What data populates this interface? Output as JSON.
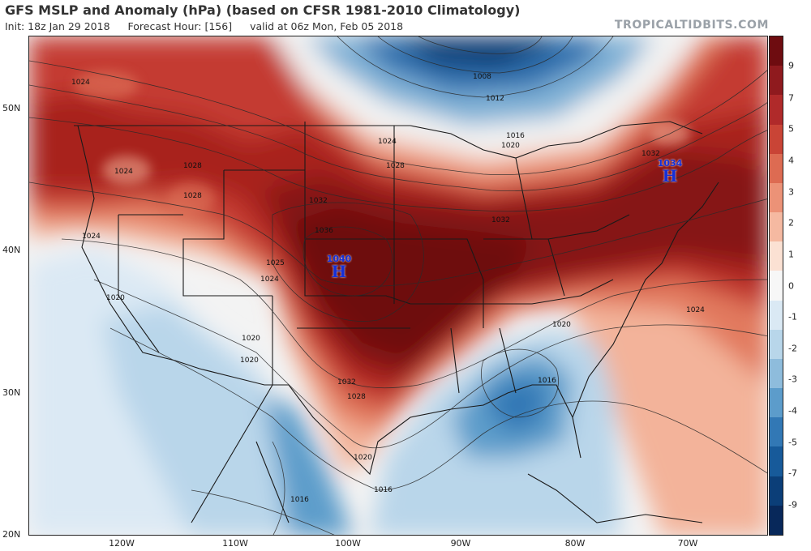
{
  "header": {
    "title": "GFS MSLP and Anomaly (hPa) (based on CFSR 1981-2010 Climatology)",
    "init": "Init: 18z Jan 29 2018",
    "forecast_hour": "Forecast Hour: [156]",
    "valid": "valid at 06z Mon, Feb 05 2018",
    "brand": "TROPICALTIDBITS.COM"
  },
  "axes": {
    "lat_labels": [
      "50N",
      "40N",
      "30N",
      "20N"
    ],
    "lon_labels": [
      "120W",
      "110W",
      "100W",
      "90W",
      "80W",
      "70W"
    ]
  },
  "colorbar": {
    "labels": [
      "9",
      "7",
      "5",
      "4",
      "3",
      "2",
      "1",
      "0",
      "-1",
      "-2",
      "-3",
      "-4",
      "-5",
      "-7",
      "-9"
    ],
    "colors": [
      "#6e0c10",
      "#8f1a1e",
      "#b02a2a",
      "#c94436",
      "#dd6b52",
      "#ec9277",
      "#f5b9a1",
      "#fbe1d3",
      "#f7f7f7",
      "#dae9f4",
      "#b8d6ea",
      "#8ebcdc",
      "#5c9ccb",
      "#3278b5",
      "#175a9a",
      "#0b3e78",
      "#08285a"
    ]
  },
  "highs": [
    {
      "value": "1040",
      "letter": "H"
    },
    {
      "value": "1034",
      "letter": "H"
    }
  ],
  "isobar_labels": [
    "1024",
    "1028",
    "1024",
    "1028",
    "1024",
    "1025",
    "1024",
    "1020",
    "1020",
    "1036",
    "1032",
    "1028",
    "1024",
    "1032",
    "1032",
    "1032",
    "1024",
    "1020",
    "1016",
    "1012",
    "1008",
    "1016",
    "1020",
    "1020",
    "1016",
    "1016",
    "1020",
    "1028"
  ]
}
